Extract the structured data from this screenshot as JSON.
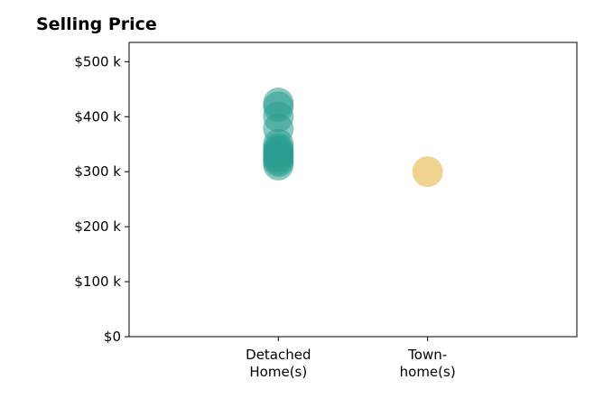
{
  "chart_data": {
    "type": "scatter",
    "title": "Selling Price",
    "xlabel": "",
    "ylabel": "",
    "categories": [
      [
        "Detached",
        "Home(s)"
      ],
      [
        "Town-",
        "home(s)"
      ]
    ],
    "y_ticks": [
      {
        "value": 0,
        "label": "$0"
      },
      {
        "value": 100000,
        "label": "$100 k"
      },
      {
        "value": 200000,
        "label": "$200 k"
      },
      {
        "value": 300000,
        "label": "$300 k"
      },
      {
        "value": 400000,
        "label": "$400 k"
      },
      {
        "value": 500000,
        "label": "$500 k"
      }
    ],
    "ylim": [
      0,
      535000
    ],
    "xlim": [
      -1,
      2
    ],
    "grid": false,
    "legend": "none",
    "series": [
      {
        "category_index": 0,
        "color": "#2a9d8f",
        "values": [
          312000,
          318000,
          322000,
          326000,
          330000,
          334000,
          338000,
          342000,
          350000,
          378000,
          400000,
          418000,
          425000
        ]
      },
      {
        "category_index": 1,
        "color": "#e9c46a",
        "values": [
          300000
        ]
      }
    ]
  }
}
